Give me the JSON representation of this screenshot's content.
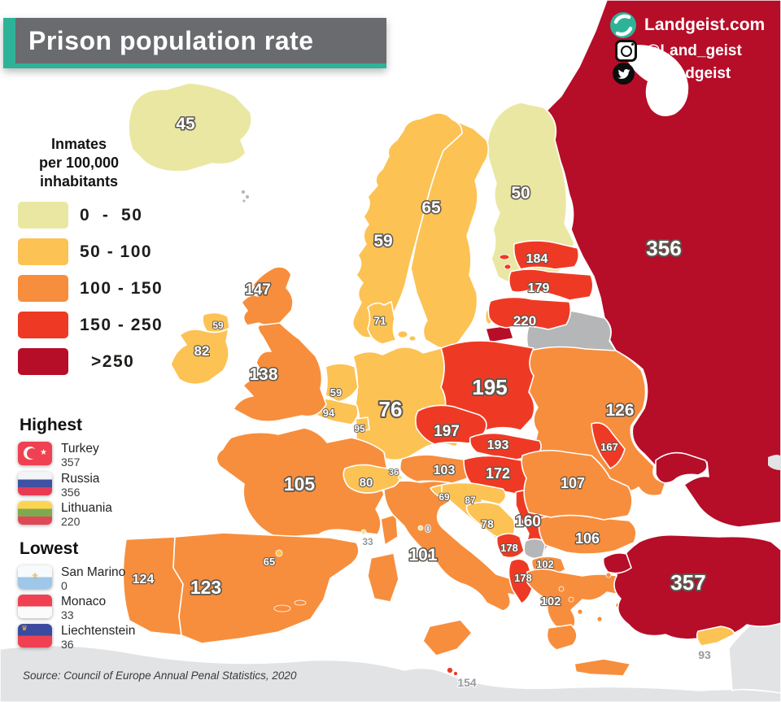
{
  "header": {
    "title": "Prison population rate"
  },
  "branding": {
    "website": "Landgeist.com",
    "instagram_handle": "@Land_geist",
    "twitter_handle": "@Landgeist"
  },
  "legend": {
    "title_lines": [
      "Inmates",
      "per 100,000",
      "inhabitants"
    ],
    "items": [
      {
        "label": "0  -  50",
        "band": "band1"
      },
      {
        "label": "50 - 100",
        "band": "band2"
      },
      {
        "label": "100 - 150",
        "band": "band3"
      },
      {
        "label": "150 - 250",
        "band": "band4"
      },
      {
        "label": ">250",
        "band": "band5"
      }
    ]
  },
  "palette": {
    "band1": "#eae7a2",
    "band2": "#fcc254",
    "band3": "#f78e3d",
    "band4": "#ee3a24",
    "band5": "#b60d28",
    "no_data": "#b4b6b8",
    "non_europe": "#e2e3e4",
    "accent_teal": "#2eb398",
    "banner_gray": "#6a6b6e"
  },
  "highest": {
    "heading": "Highest",
    "entries": [
      {
        "country": "Turkey",
        "value": "357"
      },
      {
        "country": "Russia",
        "value": "356"
      },
      {
        "country": "Lithuania",
        "value": "220"
      }
    ]
  },
  "lowest": {
    "heading": "Lowest",
    "entries": [
      {
        "country": "San Marino",
        "value": "0"
      },
      {
        "country": "Monaco",
        "value": "33"
      },
      {
        "country": "Liechtenstein",
        "value": "36"
      }
    ]
  },
  "source": "Source: Council of Europe Annual Penal Statistics, 2020",
  "map": {
    "countries": [
      {
        "name": "Ukraine",
        "value": "126",
        "band": "band3"
      },
      {
        "name": "Russia",
        "value": "356",
        "band": "band5"
      },
      {
        "name": "Belarus",
        "value": null,
        "band": "no_data"
      },
      {
        "name": "Finland",
        "value": "50",
        "band": "band1"
      },
      {
        "name": "Sweden",
        "value": "65",
        "band": "band2"
      },
      {
        "name": "Norway",
        "value": "59",
        "band": "band2"
      },
      {
        "name": "Iceland",
        "value": "45",
        "band": "band1"
      },
      {
        "name": "Denmark",
        "value": "71",
        "band": "band2"
      },
      {
        "name": "Estonia",
        "value": "184",
        "band": "band4"
      },
      {
        "name": "Latvia",
        "value": "179",
        "band": "band4"
      },
      {
        "name": "Lithuania",
        "value": "220",
        "band": "band4"
      },
      {
        "name": "Poland",
        "value": "195",
        "band": "band4"
      },
      {
        "name": "Germany",
        "value": "76",
        "band": "band2"
      },
      {
        "name": "Netherlands",
        "value": "59",
        "band": "band2"
      },
      {
        "name": "Belgium",
        "value": "94",
        "band": "band2"
      },
      {
        "name": "Luxembourg",
        "value": "95",
        "band": "band2"
      },
      {
        "name": "Scotland",
        "value": "147",
        "band": "band3"
      },
      {
        "name": "England and Wales",
        "value": "138",
        "band": "band3"
      },
      {
        "name": "Northern Ireland",
        "value": "59",
        "band": "band2"
      },
      {
        "name": "Ireland",
        "value": "82",
        "band": "band2"
      },
      {
        "name": "France",
        "value": "105",
        "band": "band3"
      },
      {
        "name": "Portugal",
        "value": "124",
        "band": "band3"
      },
      {
        "name": "Spain",
        "value": "123",
        "band": "band3"
      },
      {
        "name": "Italy",
        "value": "101",
        "band": "band3"
      },
      {
        "name": "Switzerland",
        "value": "80",
        "band": "band2"
      },
      {
        "name": "Austria",
        "value": "103",
        "band": "band3"
      },
      {
        "name": "Czechia",
        "value": "197",
        "band": "band4"
      },
      {
        "name": "Slovakia",
        "value": "193",
        "band": "band4"
      },
      {
        "name": "Hungary",
        "value": "172",
        "band": "band4"
      },
      {
        "name": "Slovenia",
        "value": "69",
        "band": "band2"
      },
      {
        "name": "Croatia",
        "value": "87",
        "band": "band2"
      },
      {
        "name": "Bosnia and Herzegovina",
        "value": "78",
        "band": "band2"
      },
      {
        "name": "Serbia",
        "value": "160",
        "band": "band4"
      },
      {
        "name": "Montenegro",
        "value": "178",
        "band": "band4"
      },
      {
        "name": "Kosovo",
        "value": null,
        "band": "no_data"
      },
      {
        "name": "North Macedonia",
        "value": "102",
        "band": "band3"
      },
      {
        "name": "Albania",
        "value": "178",
        "band": "band4"
      },
      {
        "name": "Greece",
        "value": "102",
        "band": "band3"
      },
      {
        "name": "Bulgaria",
        "value": "106",
        "band": "band3"
      },
      {
        "name": "Romania",
        "value": "107",
        "band": "band3"
      },
      {
        "name": "Moldova",
        "value": "167",
        "band": "band4"
      },
      {
        "name": "Turkey",
        "value": "357",
        "band": "band5"
      },
      {
        "name": "Cyprus",
        "value": "93",
        "band": "band2"
      },
      {
        "name": "Malta",
        "value": "154",
        "band": "band4"
      },
      {
        "name": "Andorra",
        "value": "65",
        "band": "band2"
      },
      {
        "name": "Monaco",
        "value": "33",
        "band": "band1"
      },
      {
        "name": "San Marino",
        "value": "0",
        "band": "band1"
      },
      {
        "name": "Liechtenstein",
        "value": "36",
        "band": "band1"
      },
      {
        "name": "Faroe Islands",
        "value": null,
        "band": "no_data"
      }
    ]
  }
}
